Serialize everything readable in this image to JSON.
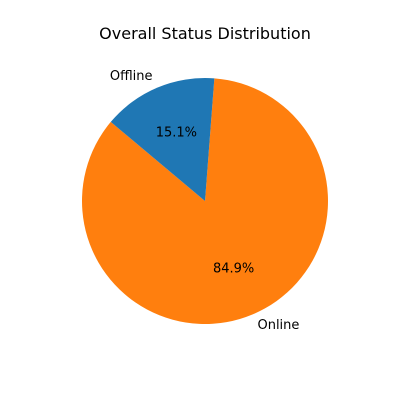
{
  "chart_data": {
    "type": "pie",
    "title": "Overall Status Distribution",
    "slices": [
      {
        "label": "Online",
        "value": 84.9,
        "pct_label": "84.9%",
        "color": "#ff7f0e"
      },
      {
        "label": "Offline",
        "value": 15.1,
        "pct_label": "15.1%",
        "color": "#1f77b4"
      }
    ],
    "start_angle_deg": 140,
    "direction": "counterclockwise",
    "legend": "none"
  }
}
